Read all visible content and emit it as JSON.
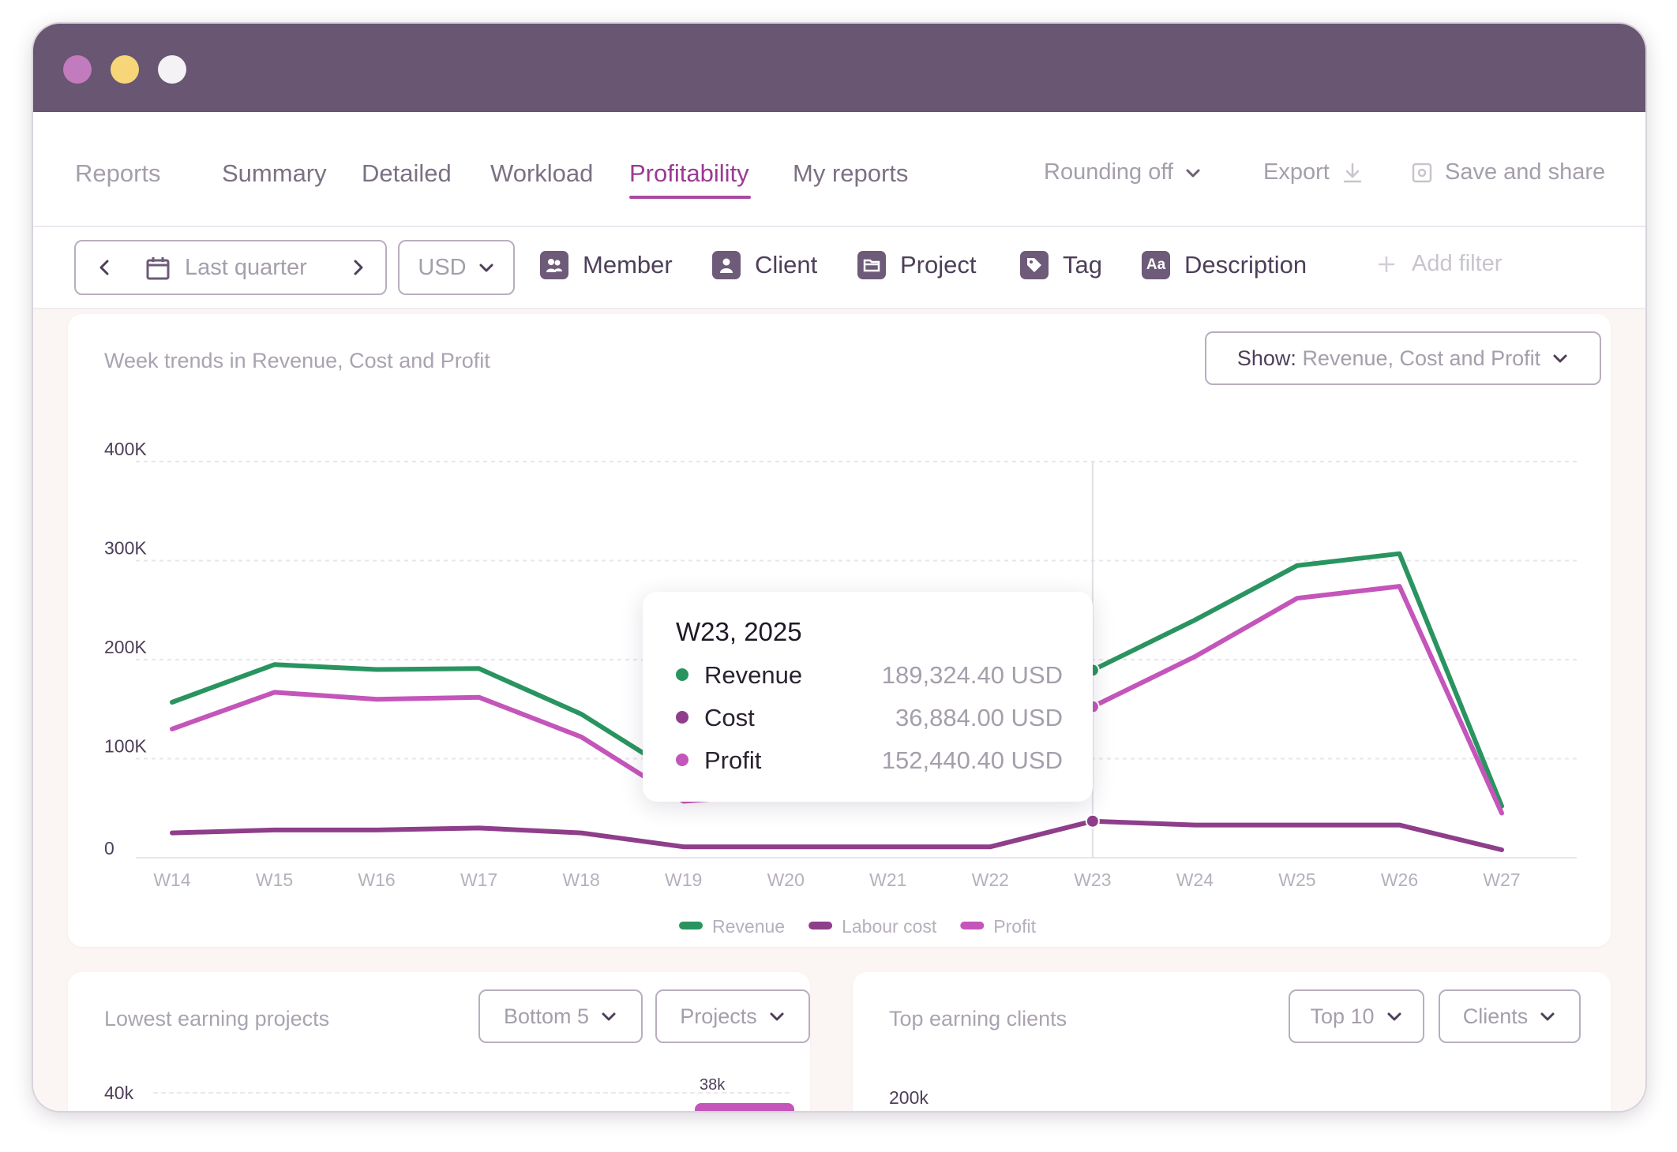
{
  "window": {
    "traffic_lights": [
      "close",
      "minimize",
      "zoom"
    ],
    "colors": {
      "titlebar": "#685672",
      "accent": "#a94aa1",
      "revenue": "#2a9460",
      "labour_cost": "#8e3e8a",
      "profit": "#c455ba"
    }
  },
  "nav": {
    "reports": "Reports",
    "tabs": [
      "Summary",
      "Detailed",
      "Workload",
      "Profitability",
      "My reports"
    ],
    "active_tab": "Profitability",
    "rounding": "Rounding off",
    "export": "Export",
    "save_share": "Save and share"
  },
  "filters": {
    "date_range": "Last quarter",
    "currency": "USD",
    "chips": [
      "Member",
      "Client",
      "Project",
      "Tag",
      "Description"
    ],
    "chip_icons": [
      "member-icon",
      "client-icon",
      "folder-icon",
      "tag-icon",
      "text-icon"
    ],
    "description_icon_text": "Aa",
    "add_filter": "Add filter"
  },
  "trend_card": {
    "title": "Week trends in Revenue, Cost and Profit",
    "show_prefix": "Show:",
    "show_value": "Revenue, Cost and Profit"
  },
  "chart_data": {
    "type": "line",
    "title": "Week trends in Revenue, Cost and Profit",
    "x": [
      "W14",
      "W15",
      "W16",
      "W17",
      "W18",
      "W19",
      "W20",
      "W21",
      "W22",
      "W23",
      "W24",
      "W25",
      "W26",
      "W27"
    ],
    "yticks": [
      "400K",
      "300K",
      "200K",
      "100K",
      "0"
    ],
    "ylim": [
      0,
      400000
    ],
    "grid": true,
    "legend_position": "bottom",
    "series": [
      {
        "name": "Revenue",
        "color": "#2a9460",
        "values": [
          157000,
          195000,
          190000,
          191000,
          145000,
          80000,
          80000,
          105000,
          145000,
          189324.4,
          240000,
          295000,
          307000,
          52000
        ]
      },
      {
        "name": "Labour cost",
        "color": "#8e3e8a",
        "values": [
          25000,
          28000,
          28000,
          30000,
          25000,
          11000,
          11000,
          11000,
          11000,
          36884,
          33000,
          33000,
          33000,
          8000
        ]
      },
      {
        "name": "Profit",
        "color": "#c455ba",
        "values": [
          130000,
          167000,
          160000,
          162000,
          122000,
          57000,
          65000,
          85000,
          120000,
          152440.4,
          203000,
          262000,
          274000,
          45000
        ]
      }
    ],
    "highlight_index": 9,
    "tooltip": {
      "title": "W23, 2025",
      "rows": [
        {
          "label": "Revenue",
          "value": "189,324.40 USD",
          "color": "#2a9460"
        },
        {
          "label": "Cost",
          "value": "36,884.00 USD",
          "color": "#8e3e8a"
        },
        {
          "label": "Profit",
          "value": "152,440.40 USD",
          "color": "#c455ba"
        }
      ]
    }
  },
  "lowest_card": {
    "title": "Lowest earning projects",
    "filter1": "Bottom 5",
    "filter2": "Projects",
    "y_top": "40k",
    "bar_label": "38k"
  },
  "top_card": {
    "title": "Top earning clients",
    "filter1": "Top 10",
    "filter2": "Clients",
    "y_top": "200k"
  }
}
